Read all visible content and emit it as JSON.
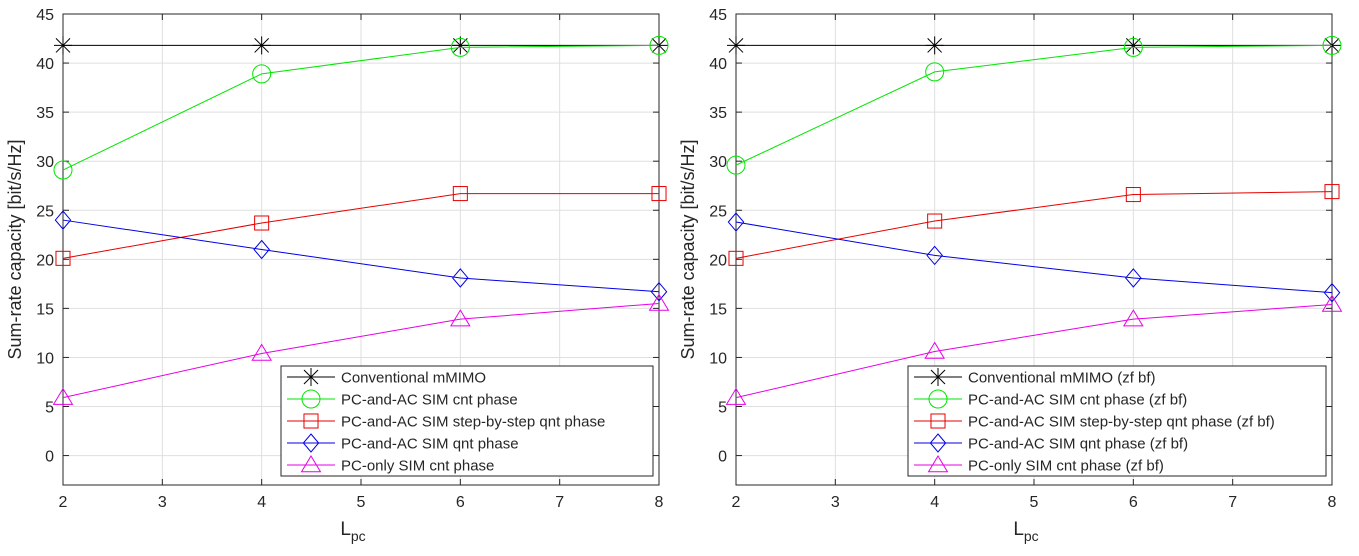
{
  "chart_data": [
    {
      "type": "line",
      "title": "",
      "xlabel": "L",
      "xlabel_sub": "pc",
      "ylabel": "Sum-rate capacity [bit/s/Hz]",
      "xlim": [
        2,
        8
      ],
      "ylim": [
        -3,
        45
      ],
      "xticks": [
        2,
        3,
        4,
        5,
        6,
        7,
        8
      ],
      "yticks": [
        0,
        5,
        10,
        15,
        20,
        25,
        30,
        35,
        40,
        45
      ],
      "grid": true,
      "legend_position": "bottom-right",
      "x": [
        2,
        4,
        6,
        8
      ],
      "series": [
        {
          "name": "Conventional mMIMO",
          "color": "#000000",
          "marker": "asterisk",
          "values": [
            41.8,
            41.8,
            41.8,
            41.8
          ]
        },
        {
          "name": "PC-and-AC SIM cnt phase",
          "color": "#00e600",
          "marker": "circle",
          "values": [
            29.1,
            38.9,
            41.6,
            41.8
          ]
        },
        {
          "name": "PC-and-AC SIM step-by-step qnt phase",
          "color": "#e60000",
          "marker": "square",
          "values": [
            20.1,
            23.7,
            26.7,
            26.7
          ]
        },
        {
          "name": "PC-and-AC SIM qnt phase",
          "color": "#0000e6",
          "marker": "diamond",
          "values": [
            24.0,
            21.0,
            18.1,
            16.7
          ]
        },
        {
          "name": "PC-only SIM cnt phase",
          "color": "#e600e6",
          "marker": "triangle",
          "values": [
            5.9,
            10.4,
            13.9,
            15.5
          ]
        }
      ]
    },
    {
      "type": "line",
      "title": "",
      "xlabel": "L",
      "xlabel_sub": "pc",
      "ylabel": "Sum-rate capacity [bit/s/Hz]",
      "xlim": [
        2,
        8
      ],
      "ylim": [
        -3,
        45
      ],
      "xticks": [
        2,
        3,
        4,
        5,
        6,
        7,
        8
      ],
      "yticks": [
        0,
        5,
        10,
        15,
        20,
        25,
        30,
        35,
        40,
        45
      ],
      "grid": true,
      "legend_position": "bottom-right",
      "x": [
        2,
        4,
        6,
        8
      ],
      "series": [
        {
          "name": "Conventional mMIMO (zf bf)",
          "color": "#000000",
          "marker": "asterisk",
          "values": [
            41.8,
            41.8,
            41.8,
            41.8
          ]
        },
        {
          "name": "PC-and-AC SIM cnt phase (zf bf)",
          "color": "#00e600",
          "marker": "circle",
          "values": [
            29.6,
            39.1,
            41.6,
            41.8
          ]
        },
        {
          "name": "PC-and-AC SIM step-by-step qnt phase (zf bf)",
          "color": "#e60000",
          "marker": "square",
          "values": [
            20.1,
            23.9,
            26.6,
            26.9
          ]
        },
        {
          "name": "PC-and-AC SIM qnt phase (zf bf)",
          "color": "#0000e6",
          "marker": "diamond",
          "values": [
            23.8,
            20.4,
            18.1,
            16.6
          ]
        },
        {
          "name": "PC-only SIM cnt phase (zf bf)",
          "color": "#e600e6",
          "marker": "triangle",
          "values": [
            5.9,
            10.6,
            13.9,
            15.4
          ]
        }
      ]
    }
  ]
}
